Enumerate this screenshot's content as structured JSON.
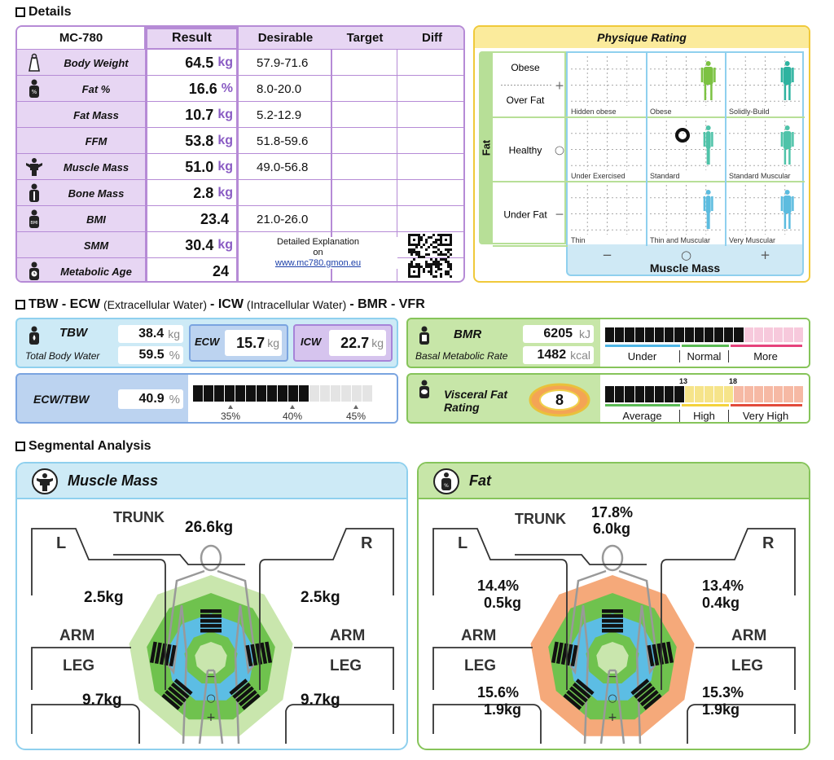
{
  "sections": {
    "details": "Details",
    "water_a": "TBW - ECW",
    "water_b": "(Extracellular Water)",
    "water_c": "- ICW",
    "water_d": "(Intracellular Water)",
    "water_e": "- BMR - VFR",
    "segmental": "Segmental Analysis"
  },
  "details": {
    "headers": {
      "model": "MC-780",
      "result": "Result",
      "desirable": "Desirable",
      "target": "Target",
      "diff": "Diff"
    },
    "rows": [
      {
        "label": "Body Weight",
        "value": "64.5",
        "unit": "kg",
        "desirable": "57.9-71.6",
        "icon": "weight-icon"
      },
      {
        "label": "Fat %",
        "value": "16.6",
        "unit": "%",
        "desirable": "8.0-20.0",
        "icon": "fat-percent-icon"
      },
      {
        "label": "Fat Mass",
        "value": "10.7",
        "unit": "kg",
        "desirable": "5.2-12.9",
        "icon": ""
      },
      {
        "label": "FFM",
        "value": "53.8",
        "unit": "kg",
        "desirable": "51.8-59.6",
        "icon": ""
      },
      {
        "label": "Muscle Mass",
        "value": "51.0",
        "unit": "kg",
        "desirable": "49.0-56.8",
        "icon": "muscle-icon"
      },
      {
        "label": "Bone Mass",
        "value": "2.8",
        "unit": "kg",
        "desirable": "",
        "icon": "bone-icon"
      },
      {
        "label": "BMI",
        "value": "23.4",
        "unit": "",
        "desirable": "21.0-26.0",
        "icon": "bmi-icon"
      },
      {
        "label": "SMM",
        "value": "30.4",
        "unit": "kg",
        "desirable": "",
        "icon": ""
      },
      {
        "label": "Metabolic Age",
        "value": "24",
        "unit": "",
        "desirable": "",
        "icon": "metabolic-age-icon"
      }
    ],
    "explanation": {
      "line1": "Detailed Explanation",
      "line2": "on",
      "link": "www.mc780.gmon.eu"
    }
  },
  "physique": {
    "title": "Physique Rating",
    "fat_axis": "Fat",
    "muscle_axis": "Muscle Mass",
    "rows": [
      {
        "label1": "Obese",
        "label2": "Over Fat",
        "symbol": "+"
      },
      {
        "label1": "Healthy",
        "label2": "",
        "symbol": "○"
      },
      {
        "label1": "Under Fat",
        "label2": "",
        "symbol": "−"
      }
    ],
    "cols": [
      "−",
      "○",
      "+"
    ],
    "cells": [
      "Hidden obese",
      "Obese",
      "Solidly-Build",
      "Under Exercised",
      "Standard",
      "Standard Muscular",
      "Thin",
      "Thin and Muscular",
      "Very Muscular"
    ],
    "selected": "Standard"
  },
  "water": {
    "tbw": {
      "label": "TBW",
      "sub": "Total Body Water",
      "kg": "38.4",
      "kg_unit": "kg",
      "pct": "59.5",
      "pct_unit": "%"
    },
    "ecw": {
      "label": "ECW",
      "value": "15.7",
      "unit": "kg"
    },
    "icw": {
      "label": "ICW",
      "value": "22.7",
      "unit": "kg"
    },
    "ratio": {
      "label": "ECW/TBW",
      "value": "40.9",
      "unit": "%",
      "ticks": [
        "35%",
        "40%",
        "45%"
      ],
      "filled": 11,
      "total": 17
    }
  },
  "bmr": {
    "label": "BMR",
    "sub": "Basal Metabolic Rate",
    "kj": "6205",
    "kj_unit": "kJ",
    "kcal": "1482",
    "kcal_unit": "kcal",
    "scale": [
      "Under",
      "Normal",
      "More"
    ],
    "filled": 14,
    "total": 20
  },
  "vfr": {
    "label": "Visceral Fat Rating",
    "value": "8",
    "scale": [
      "Average",
      "High",
      "Very High"
    ],
    "marks": [
      "13",
      "18"
    ],
    "filled": 8,
    "total": 20
  },
  "segmental": {
    "muscle": {
      "title": "Muscle Mass",
      "trunk_label": "TRUNK",
      "trunk": "26.6kg",
      "left": "L",
      "right": "R",
      "arm": "ARM",
      "leg": "LEG",
      "left_arm": "2.5kg",
      "right_arm": "2.5kg",
      "left_leg": "9.7kg",
      "right_leg": "9.7kg"
    },
    "fat": {
      "title": "Fat",
      "trunk_label": "TRUNK",
      "trunk_pct": "17.8%",
      "trunk_kg": "6.0kg",
      "left": "L",
      "right": "R",
      "arm": "ARM",
      "leg": "LEG",
      "left_arm_pct": "14.4%",
      "left_arm_kg": "0.5kg",
      "right_arm_pct": "13.4%",
      "right_arm_kg": "0.4kg",
      "left_leg_pct": "15.6%",
      "left_leg_kg": "1.9kg",
      "right_leg_pct": "15.3%",
      "right_leg_kg": "1.9kg"
    }
  }
}
